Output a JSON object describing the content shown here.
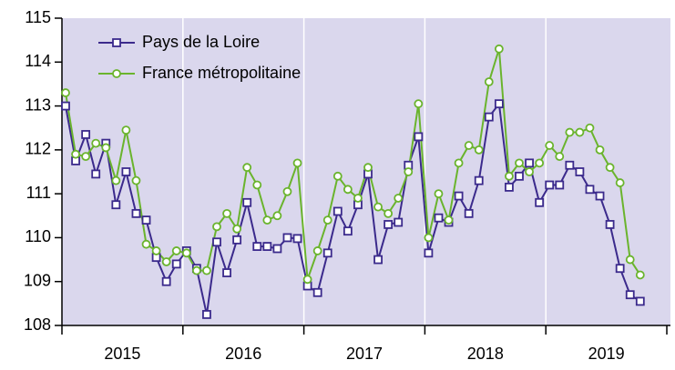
{
  "chart_data": {
    "type": "line",
    "categories": [
      null,
      null,
      null,
      null,
      null,
      null,
      null,
      null,
      null,
      null,
      null,
      null,
      null,
      null,
      null,
      null,
      null,
      null,
      null,
      null,
      null,
      null,
      null,
      null,
      null,
      null,
      null,
      null,
      null,
      null,
      null,
      null,
      null,
      null,
      null,
      null,
      null,
      null,
      null,
      null,
      null,
      null,
      null,
      null,
      null,
      null,
      null,
      null,
      null,
      null,
      null,
      null,
      null,
      null,
      null,
      null,
      null,
      null
    ],
    "year_labels": [
      "2015",
      "2016",
      "2017",
      "2018",
      "2019"
    ],
    "series": [
      {
        "name": "Pays de la Loire",
        "color": "#3b2a8c",
        "marker": "square",
        "values": [
          113.0,
          111.75,
          112.35,
          111.45,
          112.15,
          110.75,
          111.5,
          110.55,
          110.4,
          109.55,
          109.0,
          109.4,
          109.7,
          109.3,
          108.25,
          109.9,
          109.2,
          109.95,
          110.8,
          109.8,
          109.8,
          109.75,
          110.0,
          109.98,
          108.9,
          108.75,
          109.65,
          110.6,
          110.15,
          110.75,
          111.45,
          109.5,
          110.3,
          110.35,
          111.65,
          112.3,
          109.65,
          110.45,
          110.35,
          110.95,
          110.55,
          111.3,
          112.75,
          113.05,
          111.15,
          111.4,
          111.7,
          110.8,
          111.2,
          111.2,
          111.65,
          111.5,
          111.1,
          110.95,
          110.3,
          109.3,
          108.7,
          108.55
        ]
      },
      {
        "name": "France métropolitaine",
        "color": "#6ab42d",
        "marker": "circle",
        "values": [
          113.3,
          111.9,
          111.85,
          112.15,
          112.05,
          111.3,
          112.45,
          111.3,
          109.85,
          109.7,
          109.45,
          109.7,
          109.65,
          109.25,
          109.25,
          110.25,
          110.55,
          110.2,
          111.6,
          111.2,
          110.4,
          110.5,
          111.05,
          111.7,
          109.05,
          109.7,
          110.4,
          111.4,
          111.1,
          110.9,
          111.6,
          110.7,
          110.55,
          110.9,
          111.5,
          113.05,
          110.0,
          111.0,
          110.4,
          111.7,
          112.1,
          112.0,
          113.55,
          114.3,
          111.4,
          111.7,
          111.5,
          111.7,
          112.1,
          111.85,
          112.4,
          112.4,
          112.5,
          112.0,
          111.6,
          111.25,
          109.5,
          109.15
        ]
      }
    ],
    "ylim": [
      108,
      115
    ],
    "yticks": [
      108,
      109,
      110,
      111,
      112,
      113,
      114,
      115
    ],
    "plot_background": "#dad7ed",
    "legend": "upper left"
  }
}
